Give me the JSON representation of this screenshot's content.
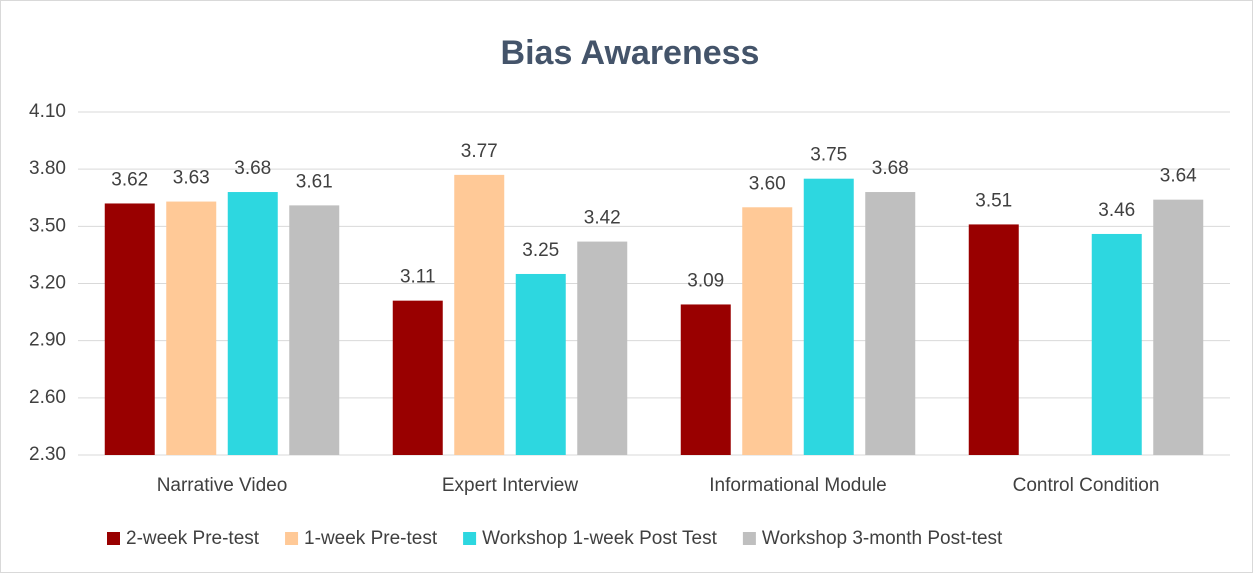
{
  "chart_data": {
    "type": "bar",
    "title": "Bias Awareness",
    "categories": [
      "Narrative Video",
      "Expert Interview",
      "Informational Module",
      "Control Condition"
    ],
    "series": [
      {
        "name": "2-week Pre-test",
        "color": "#990000",
        "values": [
          3.62,
          3.11,
          3.09,
          3.51
        ],
        "value_labels": [
          "3.62",
          "3.11",
          "3.09",
          "3.51"
        ]
      },
      {
        "name": "1-week Pre-test",
        "color": "#ffc997",
        "values": [
          3.63,
          3.77,
          3.6,
          null
        ],
        "value_labels": [
          "3.63",
          "3.77",
          "3.60",
          null
        ]
      },
      {
        "name": "Workshop 1-week Post Test",
        "color": "#2dd7e0",
        "values": [
          3.68,
          3.25,
          3.75,
          3.46
        ],
        "value_labels": [
          "3.68",
          "3.25",
          "3.75",
          "3.46"
        ]
      },
      {
        "name": "Workshop 3-month Post-test",
        "color": "#bfbfbf",
        "values": [
          3.61,
          3.42,
          3.68,
          3.64
        ],
        "value_labels": [
          "3.61",
          "3.42",
          "3.68",
          "3.64"
        ]
      }
    ],
    "ylim": [
      2.3,
      4.1
    ],
    "yticks": [
      {
        "value": 2.3,
        "label": "2.30"
      },
      {
        "value": 2.6,
        "label": "2.60"
      },
      {
        "value": 2.9,
        "label": "2.90"
      },
      {
        "value": 3.2,
        "label": "3.20"
      },
      {
        "value": 3.5,
        "label": "3.50"
      },
      {
        "value": 3.8,
        "label": "3.80"
      },
      {
        "value": 4.1,
        "label": "4.10"
      }
    ],
    "grid": true,
    "legend": "bottom"
  }
}
